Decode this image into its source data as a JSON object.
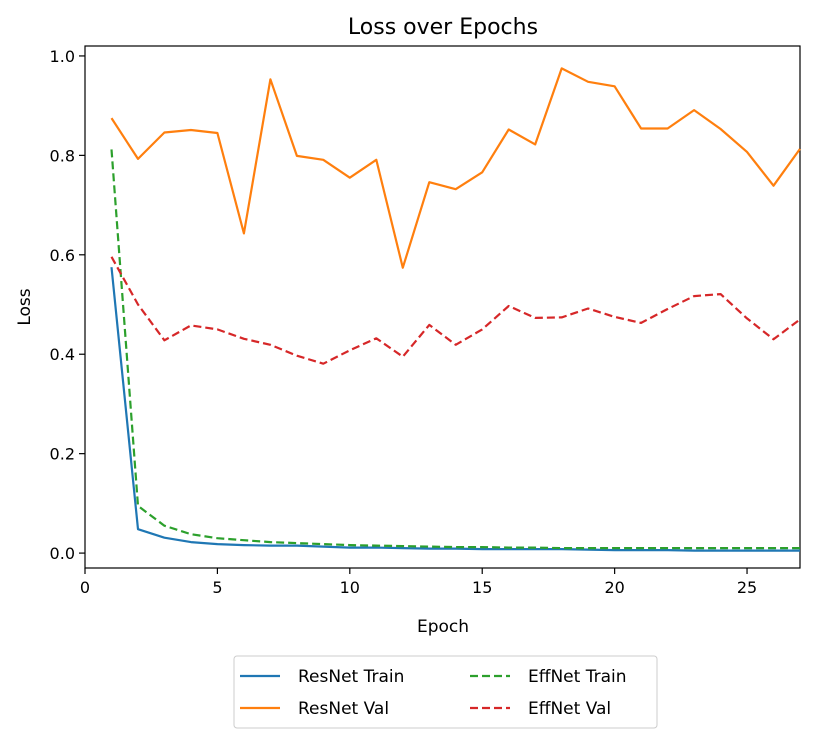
{
  "chart_data": {
    "type": "line",
    "title": "Loss over Epochs",
    "xlabel": "Epoch",
    "ylabel": "Loss",
    "xlim": [
      0.0,
      27.0
    ],
    "ylim": [
      -0.03,
      1.02
    ],
    "xticks": [
      0,
      5,
      10,
      15,
      20,
      25
    ],
    "yticks": [
      0.0,
      0.2,
      0.4,
      0.6,
      0.8,
      1.0
    ],
    "xtick_labels": [
      "0",
      "5",
      "10",
      "15",
      "20",
      "25"
    ],
    "ytick_labels": [
      "0.0",
      "0.2",
      "0.4",
      "0.6",
      "0.8",
      "1.0"
    ],
    "grid": false,
    "legend_position": "bottom-center, outside, 2 columns",
    "x": [
      1,
      2,
      3,
      4,
      5,
      6,
      7,
      8,
      9,
      10,
      11,
      12,
      13,
      14,
      15,
      16,
      17,
      18,
      19,
      20,
      21,
      22,
      23,
      24,
      25,
      26,
      27
    ],
    "series": [
      {
        "name": "ResNet Train",
        "color": "#1f77b4",
        "dash": "solid",
        "values": [
          0.575,
          0.048,
          0.031,
          0.022,
          0.018,
          0.016,
          0.015,
          0.015,
          0.013,
          0.011,
          0.011,
          0.01,
          0.009,
          0.009,
          0.008,
          0.008,
          0.008,
          0.008,
          0.007,
          0.006,
          0.006,
          0.006,
          0.005,
          0.005,
          0.005,
          0.005,
          0.005
        ]
      },
      {
        "name": "ResNet Val",
        "color": "#ff7f0e",
        "dash": "solid",
        "values": [
          0.875,
          0.793,
          0.846,
          0.851,
          0.845,
          0.643,
          0.953,
          0.799,
          0.791,
          0.755,
          0.791,
          0.574,
          0.746,
          0.732,
          0.766,
          0.852,
          0.822,
          0.975,
          0.948,
          0.939,
          0.854,
          0.854,
          0.891,
          0.853,
          0.807,
          0.739,
          0.813
        ]
      },
      {
        "name": "EffNet Train",
        "color": "#2ca02c",
        "dash": "dashed",
        "values": [
          0.812,
          0.095,
          0.055,
          0.038,
          0.03,
          0.026,
          0.022,
          0.02,
          0.018,
          0.016,
          0.015,
          0.014,
          0.013,
          0.012,
          0.012,
          0.011,
          0.011,
          0.01,
          0.01,
          0.01,
          0.01,
          0.01,
          0.01,
          0.01,
          0.01,
          0.01,
          0.01
        ]
      },
      {
        "name": "EffNet Val",
        "color": "#d62728",
        "dash": "dashed",
        "values": [
          0.596,
          0.5,
          0.428,
          0.458,
          0.45,
          0.431,
          0.419,
          0.397,
          0.381,
          0.408,
          0.432,
          0.395,
          0.459,
          0.419,
          0.45,
          0.497,
          0.473,
          0.474,
          0.492,
          0.475,
          0.463,
          0.491,
          0.517,
          0.521,
          0.472,
          0.43,
          0.47
        ]
      }
    ]
  }
}
